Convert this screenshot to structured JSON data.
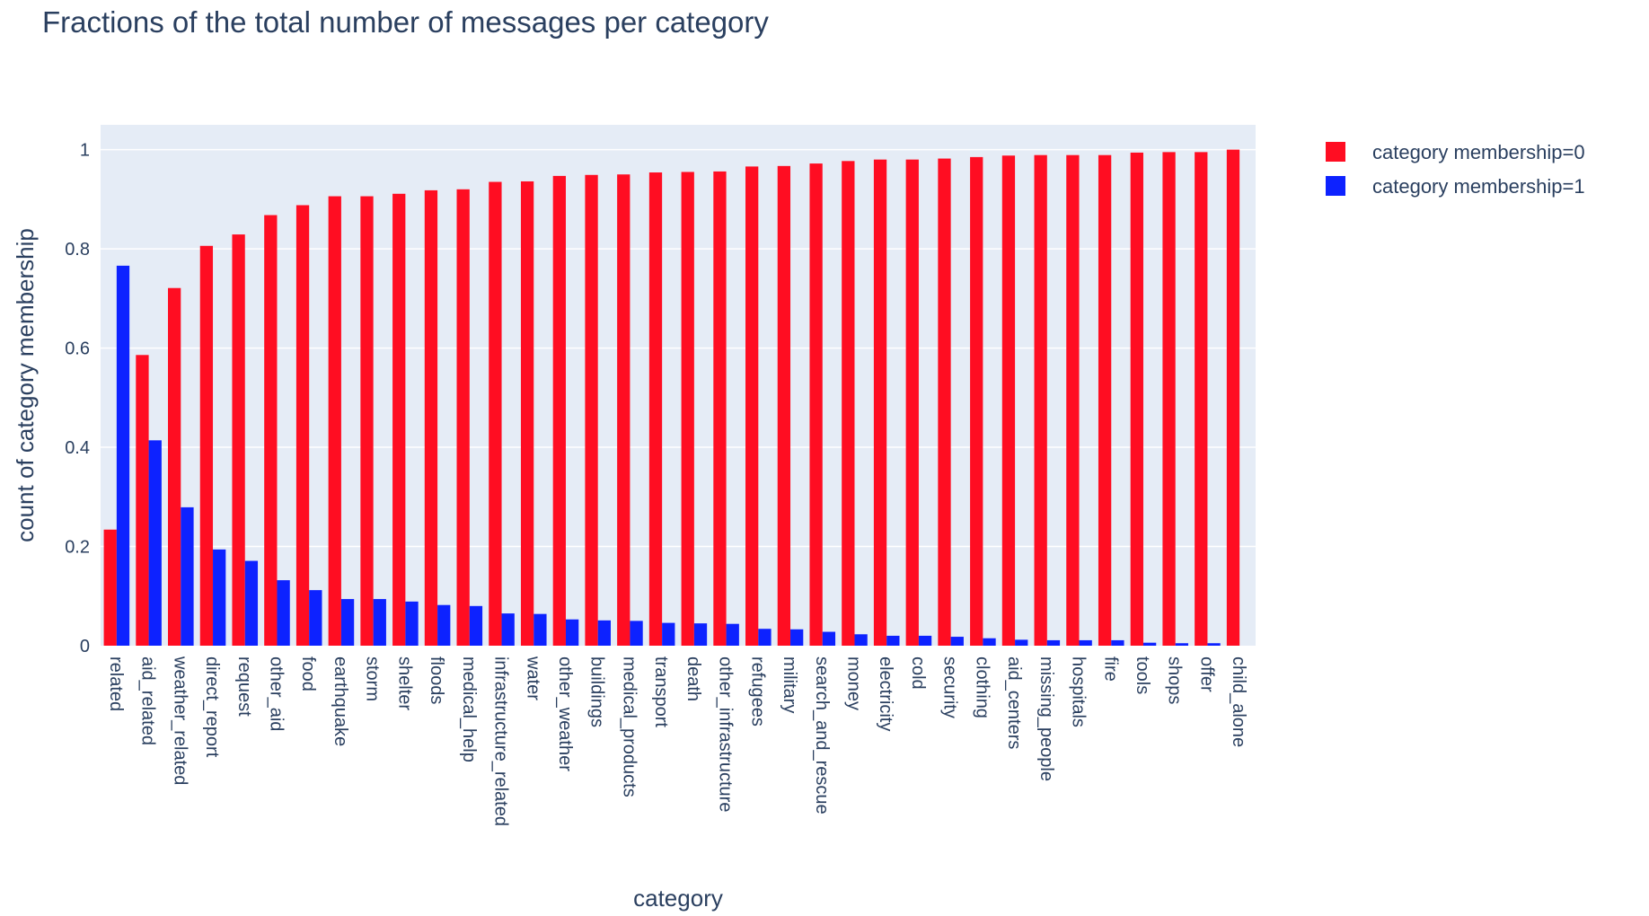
{
  "chart_data": {
    "type": "bar",
    "barmode": "group",
    "title": "Fractions of the total number of messages per category",
    "xlabel": "category",
    "ylabel": "count of category membership",
    "ylim": [
      0,
      1.05
    ],
    "yticks": [
      0,
      0.2,
      0.4,
      0.6,
      0.8,
      1
    ],
    "ytick_labels": [
      "0",
      "0.2",
      "0.4",
      "0.6",
      "0.8",
      "1"
    ],
    "grid": true,
    "legend_position": "top-right",
    "categories": [
      "related",
      "aid_related",
      "weather_related",
      "direct_report",
      "request",
      "other_aid",
      "food",
      "earthquake",
      "storm",
      "shelter",
      "floods",
      "medical_help",
      "infrastructure_related",
      "water",
      "other_weather",
      "buildings",
      "medical_products",
      "transport",
      "death",
      "other_infrastructure",
      "refugees",
      "military",
      "search_and_rescue",
      "money",
      "electricity",
      "cold",
      "security",
      "clothing",
      "aid_centers",
      "missing_people",
      "hospitals",
      "fire",
      "tools",
      "shops",
      "offer",
      "child_alone"
    ],
    "series": [
      {
        "name": "category membership=0",
        "color": "#ff0d22",
        "values": [
          0.234,
          0.586,
          0.721,
          0.806,
          0.829,
          0.868,
          0.888,
          0.906,
          0.906,
          0.911,
          0.918,
          0.92,
          0.935,
          0.936,
          0.947,
          0.949,
          0.95,
          0.954,
          0.955,
          0.956,
          0.966,
          0.967,
          0.972,
          0.977,
          0.98,
          0.98,
          0.982,
          0.985,
          0.988,
          0.989,
          0.989,
          0.989,
          0.994,
          0.995,
          0.995,
          1.0
        ]
      },
      {
        "name": "category membership=1",
        "color": "#0d22ff",
        "values": [
          0.766,
          0.414,
          0.279,
          0.194,
          0.171,
          0.132,
          0.112,
          0.094,
          0.094,
          0.089,
          0.082,
          0.08,
          0.065,
          0.064,
          0.053,
          0.051,
          0.05,
          0.046,
          0.045,
          0.044,
          0.034,
          0.033,
          0.028,
          0.023,
          0.02,
          0.02,
          0.018,
          0.015,
          0.012,
          0.011,
          0.011,
          0.011,
          0.006,
          0.005,
          0.005,
          0.0
        ]
      }
    ]
  }
}
